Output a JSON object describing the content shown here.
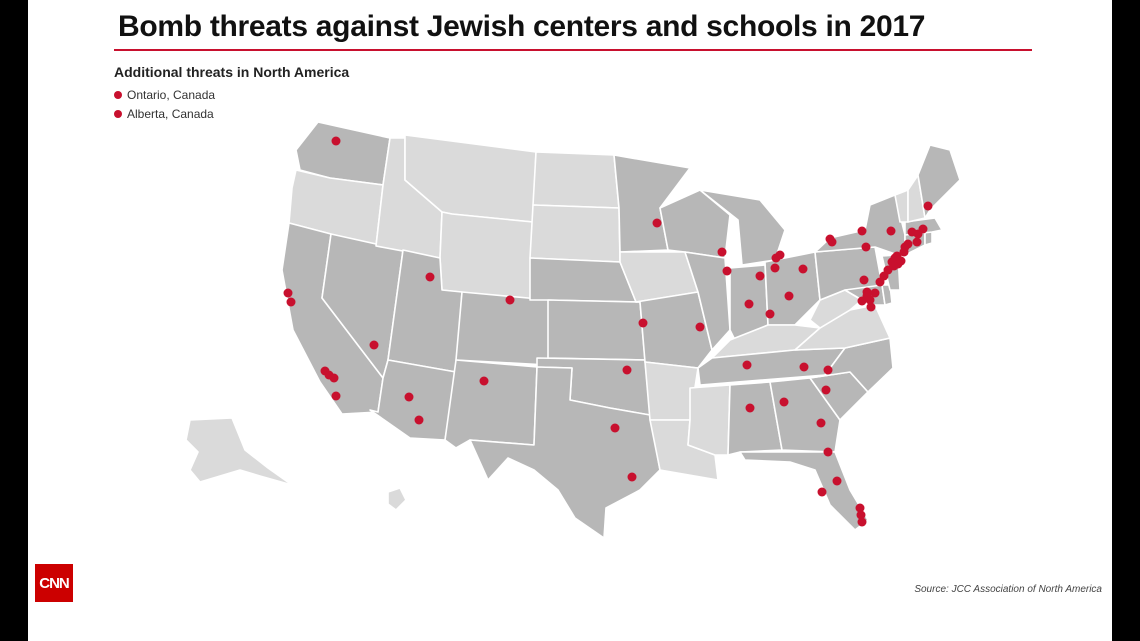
{
  "title": "Bomb threats against Jewish centers and schools in 2017",
  "subtitle": "Additional threats in North America",
  "legend": [
    {
      "label": "Ontario, Canada"
    },
    {
      "label": "Alberta, Canada"
    }
  ],
  "source": "Source: JCC Association of North America",
  "logo_text": "CNN",
  "colors": {
    "threat_dot": "#c8102e",
    "state_affected": "#b7b7b7",
    "state_unaffected": "#dadada",
    "state_border": "#ffffff",
    "title_rule": "#c8102e"
  },
  "map": {
    "affected_states": [
      "California",
      "Nevada",
      "Utah",
      "Arizona",
      "Colorado",
      "New Mexico",
      "Texas",
      "Oklahoma",
      "Kansas",
      "Nebraska",
      "Minnesota",
      "Wisconsin",
      "Illinois",
      "Michigan",
      "Indiana",
      "Ohio",
      "Missouri",
      "Tennessee",
      "Alabama",
      "Georgia",
      "Florida",
      "South Carolina",
      "North Carolina",
      "Pennsylvania",
      "New York",
      "New Jersey",
      "Delaware",
      "Maryland",
      "Connecticut",
      "Massachusetts",
      "Rhode Island",
      "Maine",
      "Washington"
    ],
    "unaffected_states": [
      "Oregon",
      "Idaho",
      "Montana",
      "Wyoming",
      "North Dakota",
      "South Dakota",
      "Iowa",
      "Arkansas",
      "Louisiana",
      "Mississippi",
      "Kentucky",
      "West Virginia",
      "Virginia",
      "Vermont",
      "New Hampshire",
      "Alaska",
      "Hawaii"
    ]
  }
}
